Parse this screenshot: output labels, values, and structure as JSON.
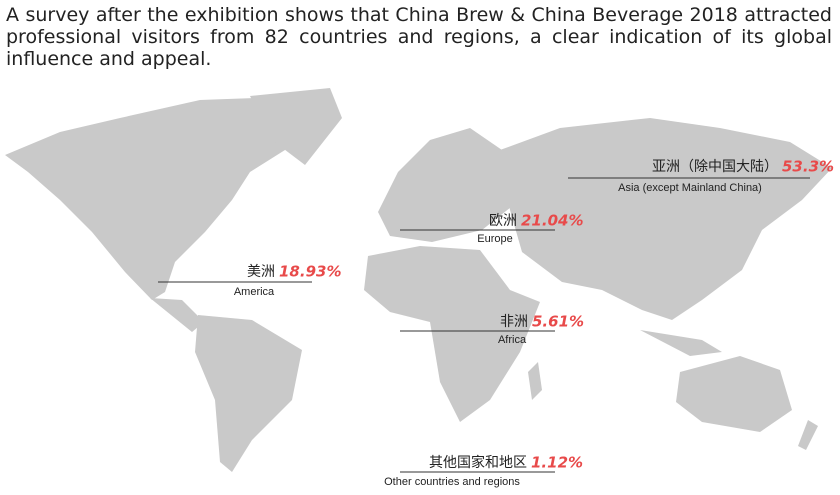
{
  "header": {
    "text": "A survey after the exhibition shows that China Brew & China Beverage 2018 attracted professional visitors from 82 countries and regions, a clear indication of its global influence and appeal."
  },
  "regions": [
    {
      "name_zh": "亚洲（除中国大陆）",
      "percent": "53.3%",
      "name_en": "Asia (except Mainland China)"
    },
    {
      "name_zh": "欧洲",
      "percent": "21.04%",
      "name_en": "Europe"
    },
    {
      "name_zh": "美洲",
      "percent": "18.93%",
      "name_en": "America"
    },
    {
      "name_zh": "非洲",
      "percent": "5.61%",
      "name_en": "Africa"
    },
    {
      "name_zh": "其他国家和地区",
      "percent": "1.12%",
      "name_en": "Other countries and regions"
    }
  ]
}
